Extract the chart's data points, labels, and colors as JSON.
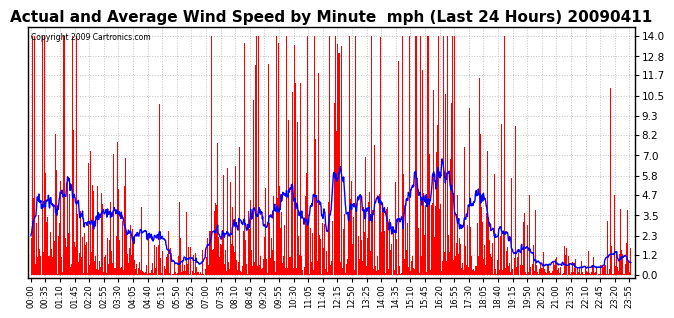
{
  "title": "Actual and Average Wind Speed by Minute  mph (Last 24 Hours) 20090411",
  "copyright": "Copyright 2009 Cartronics.com",
  "yticks": [
    0.0,
    1.2,
    2.3,
    3.5,
    4.7,
    5.8,
    7.0,
    8.2,
    9.3,
    10.5,
    11.7,
    12.8,
    14.0
  ],
  "ymax": 14.5,
  "ymin": -0.2,
  "bar_color": "#FF0000",
  "line_color": "#0000FF",
  "bg_color": "#FFFFFF",
  "grid_color": "#BBBBBB",
  "title_fontsize": 11,
  "avg_window": 30,
  "xtick_interval_min": 35
}
